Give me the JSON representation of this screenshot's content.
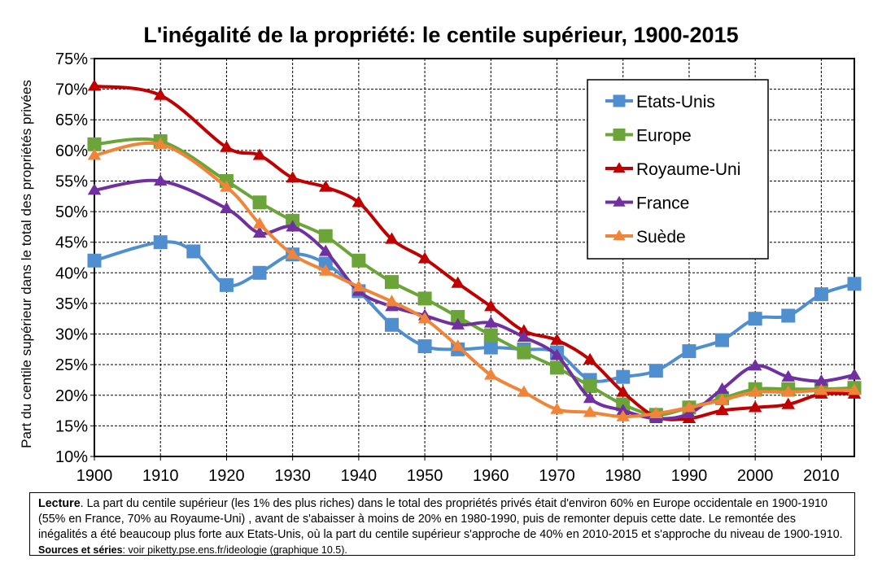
{
  "chart_data": {
    "type": "line",
    "title": "L'inégalité de la propriété: le centile supérieur, 1900-2015",
    "ylabel": "Part du centile supérieur dans le total des propriétés privées",
    "xlabel": "",
    "xlim": [
      1900,
      2015
    ],
    "ylim": [
      10,
      75
    ],
    "x_ticks": [
      "1900",
      "1910",
      "1920",
      "1930",
      "1940",
      "1950",
      "1960",
      "1970",
      "1980",
      "1990",
      "2000",
      "2010"
    ],
    "y_ticks": [
      "10%",
      "15%",
      "20%",
      "25%",
      "30%",
      "35%",
      "40%",
      "45%",
      "50%",
      "55%",
      "60%",
      "65%",
      "70%",
      "75%"
    ],
    "grid": true,
    "legend_position": "top-right",
    "series": [
      {
        "name": "Etats-Unis",
        "color": "#4F8FD0",
        "marker": "square",
        "points": [
          [
            1900,
            42.0
          ],
          [
            1910,
            45.0
          ],
          [
            1915,
            43.5
          ],
          [
            1920,
            38.0
          ],
          [
            1925,
            40.0
          ],
          [
            1930,
            43.0
          ],
          [
            1935,
            41.5
          ],
          [
            1940,
            37.0
          ],
          [
            1945,
            31.5
          ],
          [
            1950,
            28.0
          ],
          [
            1955,
            27.5
          ],
          [
            1960,
            27.8
          ],
          [
            1965,
            27.5
          ],
          [
            1970,
            27.0
          ],
          [
            1975,
            22.5
          ],
          [
            1980,
            23.0
          ],
          [
            1985,
            24.0
          ],
          [
            1990,
            27.2
          ],
          [
            1995,
            29.0
          ],
          [
            2000,
            32.5
          ],
          [
            2005,
            33.0
          ],
          [
            2010,
            36.5
          ],
          [
            2015,
            38.2
          ]
        ]
      },
      {
        "name": "Europe",
        "color": "#6BA539",
        "marker": "square",
        "points": [
          [
            1900,
            61.0
          ],
          [
            1910,
            61.5
          ],
          [
            1920,
            55.0
          ],
          [
            1925,
            51.5
          ],
          [
            1930,
            48.5
          ],
          [
            1935,
            46.0
          ],
          [
            1940,
            42.0
          ],
          [
            1945,
            38.5
          ],
          [
            1950,
            35.8
          ],
          [
            1955,
            32.8
          ],
          [
            1960,
            29.8
          ],
          [
            1965,
            27.0
          ],
          [
            1970,
            24.5
          ],
          [
            1975,
            21.5
          ],
          [
            1980,
            18.5
          ],
          [
            1985,
            16.8
          ],
          [
            1990,
            18.0
          ],
          [
            1995,
            19.5
          ],
          [
            2000,
            21.0
          ],
          [
            2005,
            21.0
          ],
          [
            2010,
            21.0
          ],
          [
            2015,
            21.2
          ]
        ]
      },
      {
        "name": "Royaume-Uni",
        "color": "#C00000",
        "marker": "triangle",
        "points": [
          [
            1900,
            70.5
          ],
          [
            1910,
            69.0
          ],
          [
            1920,
            60.5
          ],
          [
            1925,
            59.2
          ],
          [
            1930,
            55.5
          ],
          [
            1935,
            54.0
          ],
          [
            1940,
            51.5
          ],
          [
            1945,
            45.5
          ],
          [
            1950,
            42.3
          ],
          [
            1955,
            38.3
          ],
          [
            1960,
            34.5
          ],
          [
            1965,
            30.5
          ],
          [
            1970,
            29.0
          ],
          [
            1975,
            25.8
          ],
          [
            1980,
            20.5
          ],
          [
            1985,
            16.5
          ],
          [
            1990,
            16.2
          ],
          [
            1995,
            17.5
          ],
          [
            2000,
            18.0
          ],
          [
            2005,
            18.5
          ],
          [
            2010,
            20.2
          ],
          [
            2015,
            20.2
          ]
        ]
      },
      {
        "name": "France",
        "color": "#7030A0",
        "marker": "triangle",
        "points": [
          [
            1900,
            53.5
          ],
          [
            1910,
            55.0
          ],
          [
            1920,
            50.5
          ],
          [
            1925,
            46.5
          ],
          [
            1930,
            47.5
          ],
          [
            1935,
            43.5
          ],
          [
            1940,
            37.0
          ],
          [
            1945,
            34.5
          ],
          [
            1950,
            33.0
          ],
          [
            1955,
            31.5
          ],
          [
            1960,
            31.8
          ],
          [
            1965,
            29.5
          ],
          [
            1970,
            26.5
          ],
          [
            1975,
            19.5
          ],
          [
            1980,
            17.5
          ],
          [
            1985,
            16.2
          ],
          [
            1990,
            17.0
          ],
          [
            1995,
            21.0
          ],
          [
            2000,
            24.8
          ],
          [
            2005,
            23.0
          ],
          [
            2010,
            22.3
          ],
          [
            2015,
            23.3
          ]
        ]
      },
      {
        "name": "Suède",
        "color": "#F0853A",
        "marker": "triangle",
        "points": [
          [
            1900,
            59.2
          ],
          [
            1910,
            61.0
          ],
          [
            1920,
            54.0
          ],
          [
            1925,
            48.0
          ],
          [
            1930,
            43.0
          ],
          [
            1935,
            40.3
          ],
          [
            1940,
            37.7
          ],
          [
            1945,
            35.3
          ],
          [
            1950,
            32.5
          ],
          [
            1955,
            28.0
          ],
          [
            1960,
            23.3
          ],
          [
            1965,
            20.5
          ],
          [
            1970,
            17.7
          ],
          [
            1975,
            17.2
          ],
          [
            1980,
            16.5
          ],
          [
            1985,
            17.0
          ],
          [
            1990,
            18.0
          ],
          [
            1995,
            19.2
          ],
          [
            2000,
            20.5
          ],
          [
            2005,
            20.5
          ],
          [
            2010,
            20.8
          ],
          [
            2015,
            20.8
          ]
        ]
      }
    ]
  },
  "note": {
    "lead": "Lecture",
    "text": ". La part du centile supérieur (les 1% des plus riches) dans le total des propriétés privés était d'environ 60% en Europe occidentale en 1900-1910 (55% en France, 70% au Royaume-Uni) , avant de s'abaisser à moins de 20% en 1980-1990, puis de remonter depuis cette date. Le remontée des inégalités a été beaucoup plus forte aux Etats-Unis, où la part du centile supérieur s'approche de 40% en 2010-2015 et s'approche du niveau de 1900-1910. ",
    "sources_label": "Sources et séries",
    "sources_text": ": voir piketty.pse.ens.fr/ideologie (graphique 10.5)."
  }
}
